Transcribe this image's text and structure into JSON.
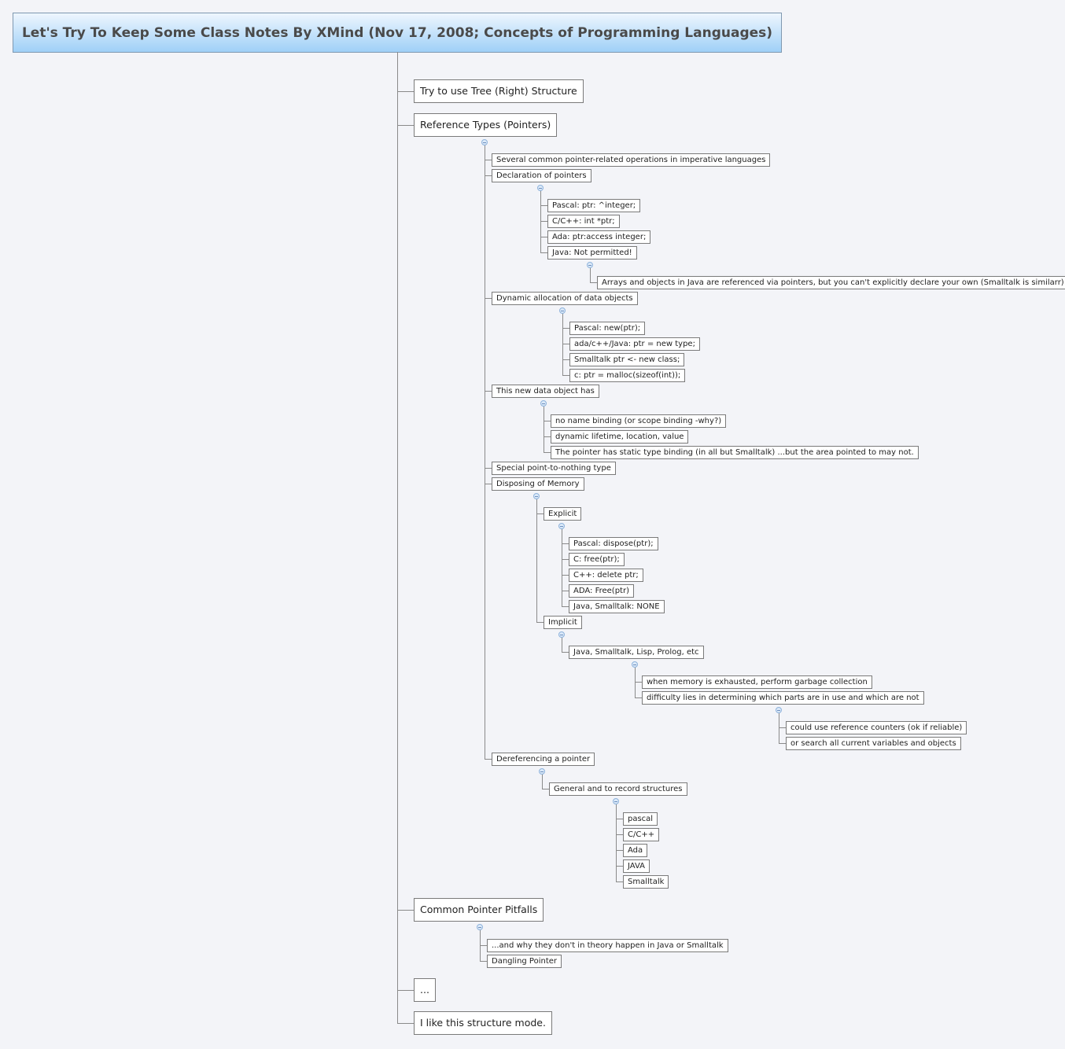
{
  "map": {
    "title": "Let's Try To Keep Some Class Notes By XMind (Nov 17, 2008; Concepts of Programming Languages)",
    "colors": {
      "title_gradient_top": "#eef6fe",
      "title_gradient_bottom": "#9fd0f7",
      "background": "#f3f4f8",
      "line": "#8a8a8a"
    },
    "topics": [
      {
        "label": "Try to use Tree (Right) Structure"
      },
      {
        "label": "Reference Types (Pointers)",
        "children": [
          {
            "label": "Several common pointer-related operations in imperative languages"
          },
          {
            "label": "Declaration of pointers",
            "children": [
              {
                "label": "Pascal: ptr: ^integer;"
              },
              {
                "label": "C/C++: int *ptr;"
              },
              {
                "label": "Ada: ptr:access integer;"
              },
              {
                "label": "Java: Not permitted!",
                "children": [
                  {
                    "label": "Arrays and objects in Java are referenced via pointers, but you can't explicitly declare your own (Smalltalk is similarr)"
                  }
                ]
              }
            ]
          },
          {
            "label": "Dynamic allocation of data objects",
            "children": [
              {
                "label": "Pascal: new(ptr);"
              },
              {
                "label": "ada/c++/Java: ptr = new type;"
              },
              {
                "label": "Smalltalk ptr <- new class;"
              },
              {
                "label": "c: ptr = malloc(sizeof(int));"
              }
            ]
          },
          {
            "label": "This new data object has",
            "children": [
              {
                "label": "no name binding (or scope binding -why?)"
              },
              {
                "label": "dynamic lifetime, location, value"
              },
              {
                "label": "The pointer has static type binding (in all but Smalltalk) ...but the area pointed to may not."
              }
            ]
          },
          {
            "label": "Special point-to-nothing type"
          },
          {
            "label": "Disposing of Memory",
            "children": [
              {
                "label": "Explicit",
                "children": [
                  {
                    "label": "Pascal: dispose(ptr);"
                  },
                  {
                    "label": "C: free(ptr);"
                  },
                  {
                    "label": "C++: delete ptr;"
                  },
                  {
                    "label": "ADA: Free(ptr)"
                  },
                  {
                    "label": "Java, Smalltalk: NONE"
                  }
                ]
              },
              {
                "label": "Implicit",
                "children": [
                  {
                    "label": "Java, Smalltalk, Lisp, Prolog, etc",
                    "children": [
                      {
                        "label": "when memory is exhausted, perform garbage collection"
                      },
                      {
                        "label": "difficulty lies in determining which parts are in use and which are not",
                        "children": [
                          {
                            "label": "could use reference counters (ok if reliable)"
                          },
                          {
                            "label": "or search all current variables and objects"
                          }
                        ]
                      }
                    ]
                  }
                ]
              }
            ]
          },
          {
            "label": "Dereferencing a pointer",
            "children": [
              {
                "label": "General and to record structures",
                "children": [
                  {
                    "label": "pascal"
                  },
                  {
                    "label": "C/C++"
                  },
                  {
                    "label": "Ada"
                  },
                  {
                    "label": "JAVA"
                  },
                  {
                    "label": "Smalltalk"
                  }
                ]
              }
            ]
          }
        ]
      },
      {
        "label": "Common Pointer Pitfalls",
        "children": [
          {
            "label": "...and why they don't in theory happen in Java or Smalltalk"
          },
          {
            "label": "Dangling Pointer"
          }
        ]
      },
      {
        "label": "..."
      },
      {
        "label": "I like this structure mode."
      }
    ]
  }
}
